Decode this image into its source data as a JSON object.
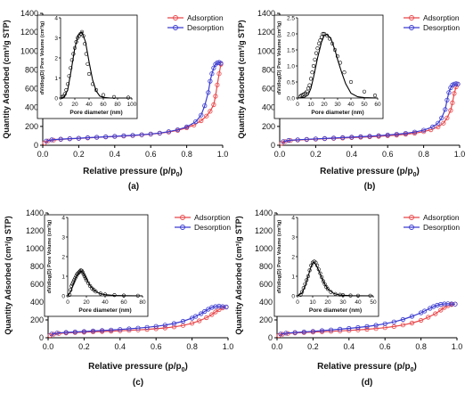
{
  "chart_data": [
    {
      "type": "line",
      "panel_label": "(a)",
      "xlabel": "Relative pressure (p/p",
      "xlabel_sub": "0",
      "ylabel": "Quantity Adsorbed (cm³/g STP)",
      "xlim": [
        0,
        1.0
      ],
      "ylim": [
        0,
        1400
      ],
      "xticks": [
        "0.0",
        "0.2",
        "0.4",
        "0.6",
        "0.8",
        "1.0"
      ],
      "yticks": [
        "0",
        "200",
        "400",
        "600",
        "800",
        "1000",
        "1200",
        "1400"
      ],
      "legend": [
        "Adsorption",
        "Desorption"
      ],
      "legend_position": "top-right",
      "series": [
        {
          "name": "Adsorption",
          "color": "#e8474a",
          "x": [
            0.01,
            0.03,
            0.06,
            0.1,
            0.15,
            0.2,
            0.25,
            0.3,
            0.35,
            0.4,
            0.45,
            0.5,
            0.55,
            0.6,
            0.65,
            0.7,
            0.75,
            0.8,
            0.84,
            0.88,
            0.91,
            0.93,
            0.95,
            0.96,
            0.97,
            0.98,
            0.99
          ],
          "y": [
            25,
            45,
            55,
            62,
            68,
            73,
            78,
            83,
            88,
            93,
            98,
            103,
            110,
            118,
            128,
            140,
            158,
            185,
            215,
            260,
            310,
            360,
            430,
            520,
            640,
            760,
            860
          ]
        },
        {
          "name": "Desorption",
          "color": "#3a3ad0",
          "x": [
            0.99,
            0.98,
            0.97,
            0.96,
            0.95,
            0.94,
            0.93,
            0.92,
            0.9,
            0.88,
            0.85,
            0.8,
            0.75,
            0.7,
            0.65,
            0.6,
            0.55,
            0.5,
            0.45,
            0.4,
            0.35,
            0.3,
            0.25,
            0.2,
            0.15,
            0.1,
            0.05,
            0.02
          ],
          "y": [
            870,
            880,
            875,
            860,
            820,
            760,
            680,
            560,
            420,
            320,
            250,
            195,
            165,
            145,
            130,
            120,
            112,
            105,
            100,
            95,
            90,
            85,
            80,
            75,
            70,
            65,
            58,
            45
          ]
        }
      ],
      "inset": {
        "xlabel": "Pore diameter (nm)",
        "ylabel": "dV/dlog(D) Pore Volume (cm³/g)",
        "xlim": [
          0,
          100
        ],
        "ylim": [
          0,
          4
        ],
        "xticks": [
          "0",
          "20",
          "40",
          "60",
          "80",
          "100"
        ],
        "yticks": [
          "0",
          "1",
          "2",
          "3",
          "4"
        ],
        "points_x": [
          2,
          4,
          6,
          8,
          10,
          12,
          14,
          16,
          18,
          20,
          22,
          24,
          26,
          28,
          30,
          32,
          34,
          36,
          38,
          40,
          45,
          50,
          60,
          75,
          95
        ],
        "points_y": [
          0.05,
          0.1,
          0.2,
          0.4,
          0.7,
          1.1,
          1.5,
          1.9,
          2.2,
          2.5,
          2.8,
          3.0,
          3.1,
          3.2,
          3.3,
          3.1,
          2.7,
          2.2,
          1.7,
          1.2,
          0.7,
          0.4,
          0.15,
          0.05,
          0.02
        ],
        "curve_x": [
          0,
          5,
          10,
          15,
          20,
          25,
          30,
          35,
          40,
          45,
          50,
          55,
          60,
          70,
          80,
          100
        ],
        "curve_y": [
          0,
          0.05,
          0.4,
          1.4,
          2.5,
          3.15,
          3.3,
          2.8,
          1.8,
          0.9,
          0.35,
          0.1,
          0.03,
          0,
          0,
          0
        ]
      }
    },
    {
      "type": "line",
      "panel_label": "(b)",
      "xlabel": "Relative pressure (p/p",
      "xlabel_sub": "0",
      "ylabel": "Quantity Adsorbed (cm³/g STP)",
      "xlim": [
        0,
        1.0
      ],
      "ylim": [
        0,
        1400
      ],
      "xticks": [
        "0.0",
        "0.2",
        "0.4",
        "0.6",
        "0.8",
        "1.0"
      ],
      "yticks": [
        "0",
        "200",
        "400",
        "600",
        "800",
        "1000",
        "1200",
        "1400"
      ],
      "legend": [
        "Adsorption",
        "Desorption"
      ],
      "legend_position": "top-right",
      "series": [
        {
          "name": "Adsorption",
          "color": "#e8474a",
          "x": [
            0.01,
            0.03,
            0.06,
            0.1,
            0.15,
            0.2,
            0.25,
            0.3,
            0.35,
            0.4,
            0.45,
            0.5,
            0.55,
            0.6,
            0.65,
            0.7,
            0.75,
            0.8,
            0.84,
            0.88,
            0.91,
            0.93,
            0.95,
            0.96,
            0.97,
            0.98,
            0.99
          ],
          "y": [
            20,
            40,
            50,
            56,
            61,
            65,
            69,
            73,
            77,
            81,
            85,
            90,
            95,
            101,
            108,
            117,
            128,
            145,
            165,
            195,
            235,
            290,
            370,
            450,
            550,
            620,
            650
          ]
        },
        {
          "name": "Desorption",
          "color": "#3a3ad0",
          "x": [
            0.99,
            0.98,
            0.97,
            0.96,
            0.95,
            0.94,
            0.93,
            0.92,
            0.9,
            0.88,
            0.85,
            0.8,
            0.75,
            0.7,
            0.65,
            0.6,
            0.55,
            0.5,
            0.45,
            0.4,
            0.35,
            0.3,
            0.25,
            0.2,
            0.15,
            0.1,
            0.05,
            0.02
          ],
          "y": [
            650,
            655,
            650,
            640,
            610,
            560,
            480,
            380,
            290,
            235,
            195,
            160,
            140,
            127,
            117,
            109,
            102,
            96,
            91,
            86,
            81,
            77,
            72,
            68,
            63,
            59,
            52,
            40
          ]
        }
      ],
      "inset": {
        "xlabel": "Pore diameter (nm)",
        "ylabel": "dV/dlog(D) Pore Volume (cm³/g)",
        "xlim": [
          0,
          60
        ],
        "ylim": [
          0,
          2.5
        ],
        "xticks": [
          "0",
          "10",
          "20",
          "30",
          "40",
          "50",
          "60"
        ],
        "yticks": [
          "0.0",
          "0.5",
          "1.0",
          "1.5",
          "2.0",
          "2.5"
        ],
        "points_x": [
          2,
          3,
          4,
          5,
          6,
          7,
          8,
          9,
          10,
          11,
          12,
          13,
          14,
          15,
          16,
          17,
          18,
          19,
          20,
          22,
          24,
          26,
          28,
          30,
          32,
          35,
          40,
          50,
          58
        ],
        "points_y": [
          0.05,
          0.08,
          0.1,
          0.12,
          0.15,
          0.2,
          0.3,
          0.4,
          0.6,
          0.8,
          1.0,
          1.2,
          1.4,
          1.55,
          1.7,
          1.8,
          1.9,
          2.0,
          2.0,
          1.95,
          1.85,
          1.7,
          1.5,
          1.3,
          1.1,
          0.8,
          0.5,
          0.2,
          0.08
        ],
        "curve_x": [
          0,
          5,
          8,
          10,
          12,
          15,
          18,
          20,
          22,
          25,
          28,
          30,
          33,
          36,
          40,
          45,
          50,
          60
        ],
        "curve_y": [
          0,
          0.02,
          0.1,
          0.3,
          0.65,
          1.25,
          1.75,
          1.95,
          1.98,
          1.85,
          1.5,
          1.2,
          0.8,
          0.45,
          0.15,
          0.04,
          0.01,
          0
        ]
      }
    },
    {
      "type": "line",
      "panel_label": "(c)",
      "xlabel": "Relative pressure (p/p",
      "xlabel_sub": "0",
      "ylabel": "Quantity Adsorbed (cm³/g STP)",
      "xlim": [
        0,
        1.0
      ],
      "ylim": [
        0,
        1400
      ],
      "xticks": [
        "0.0",
        "0.2",
        "0.4",
        "0.6",
        "0.8",
        "1.0"
      ],
      "yticks": [
        "0",
        "200",
        "400",
        "600",
        "800",
        "1000",
        "1200",
        "1400"
      ],
      "legend": [
        "Adsorption",
        "Desorption"
      ],
      "legend_position": "top-right",
      "series": [
        {
          "name": "Adsorption",
          "color": "#e8474a",
          "x": [
            0.01,
            0.03,
            0.06,
            0.1,
            0.15,
            0.2,
            0.25,
            0.3,
            0.35,
            0.4,
            0.45,
            0.5,
            0.55,
            0.6,
            0.65,
            0.7,
            0.75,
            0.8,
            0.84,
            0.88,
            0.91,
            0.93,
            0.95,
            0.97,
            0.99
          ],
          "y": [
            25,
            40,
            48,
            54,
            58,
            62,
            66,
            70,
            74,
            78,
            83,
            88,
            94,
            101,
            110,
            122,
            138,
            162,
            190,
            225,
            260,
            290,
            315,
            335,
            345
          ]
        },
        {
          "name": "Desorption",
          "color": "#3a3ad0",
          "x": [
            0.99,
            0.97,
            0.95,
            0.93,
            0.91,
            0.89,
            0.87,
            0.85,
            0.82,
            0.8,
            0.75,
            0.7,
            0.65,
            0.6,
            0.55,
            0.5,
            0.45,
            0.4,
            0.35,
            0.3,
            0.25,
            0.2,
            0.15,
            0.1,
            0.05,
            0.02
          ],
          "y": [
            345,
            350,
            355,
            350,
            340,
            320,
            295,
            270,
            240,
            220,
            185,
            160,
            142,
            128,
            117,
            108,
            100,
            93,
            87,
            81,
            76,
            70,
            65,
            60,
            53,
            42
          ]
        }
      ],
      "inset": {
        "xlabel": "Pore diameter (nm)",
        "ylabel": "dV/dlog(D) Pore Volume (cm³/g)",
        "xlim": [
          0,
          80
        ],
        "ylim": [
          0,
          4
        ],
        "xticks": [
          "0",
          "20",
          "40",
          "60",
          "80"
        ],
        "yticks": [
          "0",
          "1",
          "2",
          "3",
          "4"
        ],
        "points_x": [
          2,
          3,
          4,
          5,
          6,
          7,
          8,
          9,
          10,
          11,
          12,
          13,
          14,
          15,
          16,
          17,
          18,
          19,
          20,
          22,
          24,
          26,
          28,
          30,
          35,
          40,
          50,
          60,
          75
        ],
        "points_y": [
          0.05,
          0.3,
          0.5,
          0.6,
          0.7,
          0.8,
          0.9,
          1.0,
          1.1,
          1.15,
          1.2,
          1.25,
          1.3,
          1.28,
          1.2,
          1.1,
          1.0,
          0.9,
          0.8,
          0.65,
          0.5,
          0.38,
          0.3,
          0.22,
          0.12,
          0.07,
          0.04,
          0.02,
          0.01
        ],
        "curve_x": [
          0,
          3,
          5,
          8,
          10,
          12,
          14,
          16,
          18,
          20,
          24,
          28,
          32,
          36,
          40,
          50,
          60,
          80
        ],
        "curve_y": [
          0,
          0.2,
          0.45,
          0.85,
          1.05,
          1.2,
          1.27,
          1.22,
          1.05,
          0.85,
          0.52,
          0.3,
          0.17,
          0.1,
          0.06,
          0.02,
          0.01,
          0
        ]
      }
    },
    {
      "type": "line",
      "panel_label": "(d)",
      "xlabel": "Relative pressure (p/p",
      "xlabel_sub": "0",
      "ylabel": "Quantity Adsorbed (cm³/g STP)",
      "xlim": [
        0,
        1.0
      ],
      "ylim": [
        0,
        1400
      ],
      "xticks": [
        "0.0",
        "0.2",
        "0.4",
        "0.6",
        "0.8",
        "1.0"
      ],
      "yticks": [
        "0",
        "200",
        "400",
        "600",
        "800",
        "1000",
        "1200",
        "1400"
      ],
      "legend": [
        "Adsorption",
        "Desorption"
      ],
      "legend_position": "top-right",
      "series": [
        {
          "name": "Adsorption",
          "color": "#e8474a",
          "x": [
            0.01,
            0.03,
            0.06,
            0.1,
            0.15,
            0.2,
            0.25,
            0.3,
            0.35,
            0.4,
            0.45,
            0.5,
            0.55,
            0.6,
            0.65,
            0.7,
            0.75,
            0.8,
            0.84,
            0.88,
            0.91,
            0.93,
            0.95,
            0.97,
            0.99
          ],
          "y": [
            25,
            40,
            48,
            54,
            58,
            63,
            67,
            72,
            77,
            82,
            88,
            95,
            103,
            113,
            126,
            143,
            165,
            195,
            230,
            270,
            310,
            340,
            360,
            372,
            378
          ]
        },
        {
          "name": "Desorption",
          "color": "#3a3ad0",
          "x": [
            0.99,
            0.97,
            0.95,
            0.93,
            0.91,
            0.89,
            0.87,
            0.85,
            0.82,
            0.8,
            0.75,
            0.7,
            0.65,
            0.6,
            0.55,
            0.5,
            0.45,
            0.4,
            0.35,
            0.3,
            0.25,
            0.2,
            0.15,
            0.1,
            0.05,
            0.02
          ],
          "y": [
            378,
            380,
            382,
            380,
            375,
            365,
            350,
            330,
            300,
            280,
            240,
            205,
            178,
            157,
            140,
            126,
            115,
            105,
            96,
            88,
            80,
            72,
            65,
            59,
            52,
            42
          ]
        }
      ],
      "inset": {
        "xlabel": "Pore diameter (nm)",
        "ylabel": "dV/dlog(D) Pore Volume (cm³/g)",
        "xlim": [
          0,
          50
        ],
        "ylim": [
          0,
          4
        ],
        "xticks": [
          "0",
          "10",
          "20",
          "30",
          "40",
          "50"
        ],
        "yticks": [
          "0",
          "1",
          "2",
          "3",
          "4"
        ],
        "points_x": [
          2,
          3,
          4,
          5,
          6,
          7,
          8,
          9,
          10,
          11,
          12,
          13,
          14,
          15,
          16,
          17,
          18,
          19,
          20,
          22,
          25,
          28,
          30,
          35,
          40,
          48
        ],
        "points_y": [
          0.05,
          0.2,
          0.4,
          0.6,
          0.8,
          1.0,
          1.3,
          1.55,
          1.7,
          1.75,
          1.7,
          1.55,
          1.35,
          1.15,
          0.95,
          0.75,
          0.6,
          0.45,
          0.35,
          0.2,
          0.1,
          0.06,
          0.04,
          0.02,
          0.01,
          0.01
        ],
        "curve_x": [
          0,
          3,
          5,
          7,
          9,
          10,
          11,
          12,
          14,
          16,
          18,
          20,
          24,
          28,
          35,
          50
        ],
        "curve_y": [
          0,
          0.15,
          0.5,
          1.0,
          1.5,
          1.68,
          1.72,
          1.62,
          1.3,
          0.92,
          0.6,
          0.35,
          0.12,
          0.04,
          0.01,
          0
        ]
      }
    }
  ]
}
